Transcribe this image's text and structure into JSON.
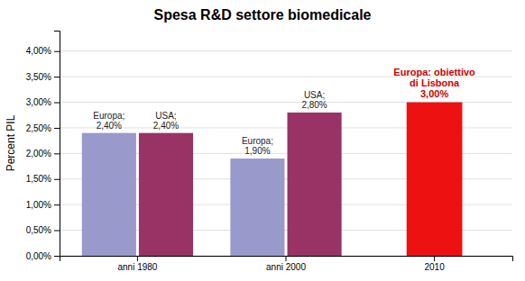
{
  "chart_data": {
    "type": "bar",
    "title": "Spesa R&D settore biomedicale",
    "ylabel": "Percent PIL",
    "categories": [
      "anni 1980",
      "anni 2000",
      "2010"
    ],
    "series": [
      {
        "color": "#9999cc",
        "values": [
          0.024,
          0.019,
          null
        ],
        "value_labels": [
          "Europa;\n2,40%",
          "Europa;\n1,90%",
          null
        ]
      },
      {
        "color": "#993366",
        "values": [
          0.024,
          0.028,
          null
        ],
        "value_labels": [
          "USA;\n2,40%",
          "USA;\n2,80%",
          null
        ]
      },
      {
        "color": "#ee1111",
        "values": [
          null,
          null,
          0.03
        ]
      }
    ],
    "data_labels": true,
    "annotation": {
      "text": "Europa: obiettivo\ndi Lisbona\n3,00%",
      "color": "#cc0000"
    },
    "ylim": [
      0.0,
      0.044
    ],
    "yticks": [
      {
        "value": 0.0,
        "label": "0,00%"
      },
      {
        "value": 0.005,
        "label": "0,50%"
      },
      {
        "value": 0.01,
        "label": "1,00%"
      },
      {
        "value": 0.015,
        "label": "1,50%"
      },
      {
        "value": 0.02,
        "label": "2,00%"
      },
      {
        "value": 0.025,
        "label": "2,50%"
      },
      {
        "value": 0.03,
        "label": "3,00%"
      },
      {
        "value": 0.035,
        "label": "3,50%"
      },
      {
        "value": 0.04,
        "label": "4,00%"
      }
    ],
    "grid": true
  }
}
